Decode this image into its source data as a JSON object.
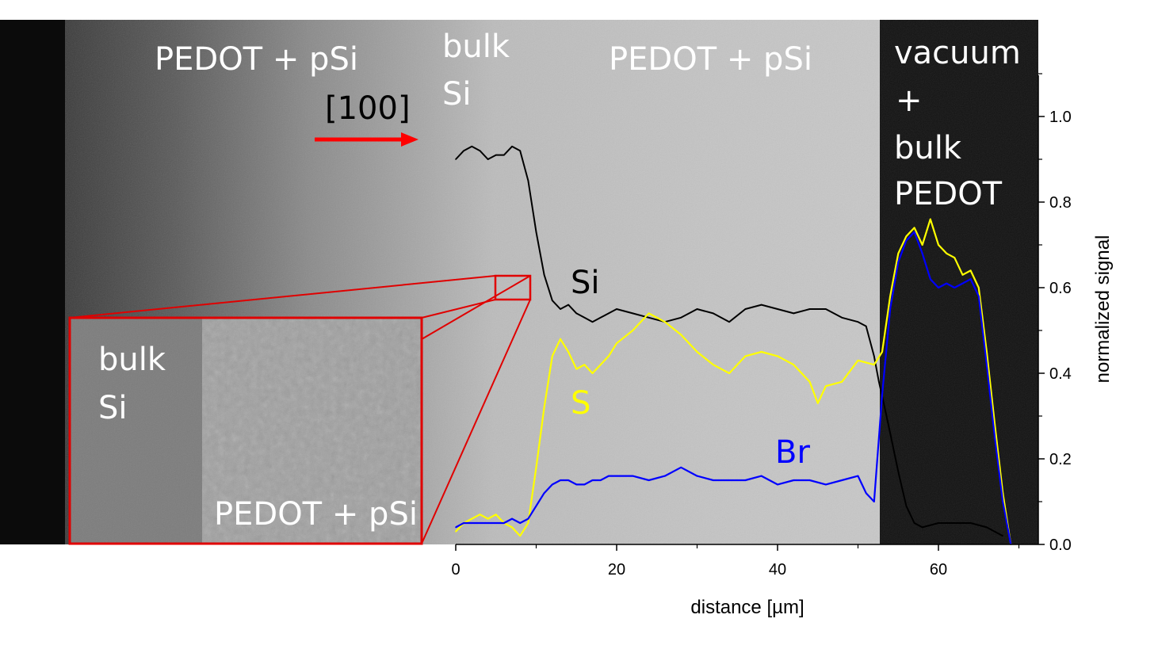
{
  "figure": {
    "region_labels": {
      "left_pedot": "PEDOT + pSi",
      "bulk_si": [
        "bulk",
        "Si"
      ],
      "middle_pedot": "PEDOT + pSi",
      "vacuum": [
        "vacuum",
        "+",
        "bulk",
        "PEDOT"
      ],
      "direction": "[100]"
    },
    "inset_labels": {
      "bulk_si": [
        "bulk",
        "Si"
      ],
      "pedot": "PEDOT + pSi"
    },
    "colors": {
      "si": "#000000",
      "s": "#ffff00",
      "br": "#0000ff",
      "inset_frame": "#e00000",
      "arrow": "#ff0000"
    }
  },
  "chart_data": {
    "type": "line",
    "xlabel": "distance [µm]",
    "ylabel": "normalized signal",
    "xlim": [
      0,
      72
    ],
    "ylim": [
      0,
      1.12
    ],
    "xticks": [
      0,
      20,
      40,
      60
    ],
    "yticks": [
      0.0,
      0.2,
      0.4,
      0.6,
      0.8,
      1.0
    ],
    "xtick_labels": [
      "0",
      "20",
      "40",
      "60"
    ],
    "ytick_labels": [
      "0.0",
      "0.2",
      "0.4",
      "0.6",
      "0.8",
      "1.0"
    ],
    "series": [
      {
        "name": "Si",
        "label": "Si",
        "color": "#000000",
        "x": [
          0,
          1,
          2,
          3,
          4,
          5,
          6,
          7,
          8,
          9,
          10,
          11,
          12,
          13,
          14,
          15,
          16,
          17,
          18,
          19,
          20,
          22,
          24,
          26,
          28,
          30,
          32,
          34,
          36,
          38,
          40,
          42,
          44,
          46,
          48,
          50,
          51,
          52,
          52.6,
          53.2,
          54,
          55,
          56,
          57,
          58,
          60,
          62,
          64,
          66,
          68
        ],
        "y": [
          0.9,
          0.92,
          0.93,
          0.92,
          0.9,
          0.91,
          0.91,
          0.93,
          0.92,
          0.85,
          0.73,
          0.63,
          0.57,
          0.55,
          0.56,
          0.54,
          0.53,
          0.52,
          0.53,
          0.54,
          0.55,
          0.54,
          0.53,
          0.52,
          0.53,
          0.55,
          0.54,
          0.52,
          0.55,
          0.56,
          0.55,
          0.54,
          0.55,
          0.55,
          0.53,
          0.52,
          0.51,
          0.44,
          0.38,
          0.33,
          0.26,
          0.17,
          0.09,
          0.05,
          0.04,
          0.05,
          0.05,
          0.05,
          0.04,
          0.02
        ]
      },
      {
        "name": "S",
        "label": "S",
        "color": "#ffff00",
        "x": [
          0,
          1,
          2,
          3,
          4,
          5,
          6,
          7,
          8,
          9,
          10,
          11,
          12,
          13,
          14,
          15,
          16,
          17,
          18,
          19,
          20,
          22,
          24,
          26,
          28,
          30,
          32,
          34,
          36,
          38,
          40,
          42,
          44,
          45,
          46,
          48,
          50,
          52,
          53,
          54,
          55,
          56,
          57,
          58,
          59,
          60,
          61,
          62,
          63,
          64,
          65,
          66,
          67,
          68,
          69
        ],
        "y": [
          0.03,
          0.05,
          0.06,
          0.07,
          0.06,
          0.07,
          0.05,
          0.04,
          0.02,
          0.05,
          0.18,
          0.32,
          0.44,
          0.48,
          0.45,
          0.41,
          0.42,
          0.4,
          0.42,
          0.44,
          0.47,
          0.5,
          0.54,
          0.52,
          0.49,
          0.45,
          0.42,
          0.4,
          0.44,
          0.45,
          0.44,
          0.42,
          0.38,
          0.33,
          0.37,
          0.38,
          0.43,
          0.42,
          0.45,
          0.58,
          0.68,
          0.72,
          0.74,
          0.7,
          0.76,
          0.7,
          0.68,
          0.67,
          0.63,
          0.64,
          0.6,
          0.45,
          0.28,
          0.12,
          0.0
        ]
      },
      {
        "name": "Br",
        "label": "Br",
        "color": "#0000ff",
        "x": [
          0,
          1,
          2,
          3,
          4,
          5,
          6,
          7,
          8,
          9,
          10,
          11,
          12,
          13,
          14,
          15,
          16,
          17,
          18,
          19,
          20,
          22,
          24,
          26,
          28,
          30,
          32,
          34,
          36,
          38,
          40,
          42,
          44,
          46,
          48,
          50,
          51,
          52,
          53,
          54,
          55,
          56,
          57,
          58,
          59,
          60,
          61,
          62,
          63,
          64,
          65,
          66,
          67,
          68,
          69
        ],
        "y": [
          0.04,
          0.05,
          0.05,
          0.05,
          0.05,
          0.05,
          0.05,
          0.06,
          0.05,
          0.06,
          0.09,
          0.12,
          0.14,
          0.15,
          0.15,
          0.14,
          0.14,
          0.15,
          0.15,
          0.16,
          0.16,
          0.16,
          0.15,
          0.16,
          0.18,
          0.16,
          0.15,
          0.15,
          0.15,
          0.16,
          0.14,
          0.15,
          0.15,
          0.14,
          0.15,
          0.16,
          0.12,
          0.1,
          0.35,
          0.55,
          0.66,
          0.71,
          0.73,
          0.68,
          0.62,
          0.6,
          0.61,
          0.6,
          0.61,
          0.62,
          0.58,
          0.42,
          0.25,
          0.1,
          0.0
        ]
      }
    ]
  }
}
